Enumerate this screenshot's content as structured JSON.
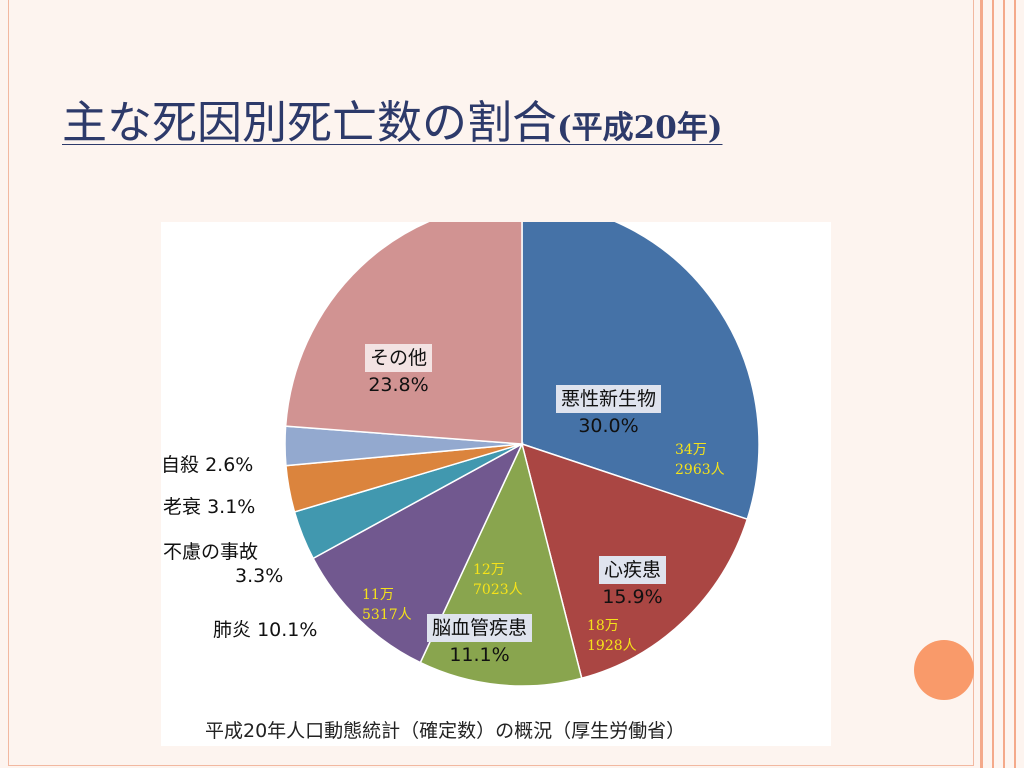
{
  "title": {
    "main": "主な死因別死亡数の割合",
    "sub": "(平成20年)"
  },
  "chart_data": {
    "type": "pie",
    "title": "",
    "slices": [
      {
        "label": "悪性新生物",
        "value": 30.0,
        "value_text": "30.0%",
        "count_lines": [
          "34万",
          "2963人"
        ],
        "color": "#4572a7"
      },
      {
        "label": "心疾患",
        "value": 15.9,
        "value_text": "15.9%",
        "count_lines": [
          "18万",
          "1928人"
        ],
        "color": "#aa4643"
      },
      {
        "label": "脳血管疾患",
        "value": 11.1,
        "value_text": "11.1%",
        "count_lines": [
          "12万",
          "7023人"
        ],
        "color": "#89a54e"
      },
      {
        "label": "肺炎",
        "value": 10.1,
        "value_text": "10.1%",
        "count_lines": [
          "11万",
          "5317人"
        ],
        "color": "#71588f"
      },
      {
        "label": "不慮の事故",
        "value": 3.3,
        "value_text": "3.3%",
        "count_lines": [],
        "color": "#4198af"
      },
      {
        "label": "老衰",
        "value": 3.1,
        "value_text": "3.1%",
        "count_lines": [],
        "color": "#db843d"
      },
      {
        "label": "自殺",
        "value": 2.6,
        "value_text": "2.6%",
        "count_lines": [],
        "color": "#93a9cf"
      },
      {
        "label": "その他",
        "value": 23.8,
        "value_text": "23.8%",
        "count_lines": [],
        "color": "#d19392"
      }
    ],
    "source": "平成20年人口動態統計（確定数）の概況（厚生労働省）"
  }
}
